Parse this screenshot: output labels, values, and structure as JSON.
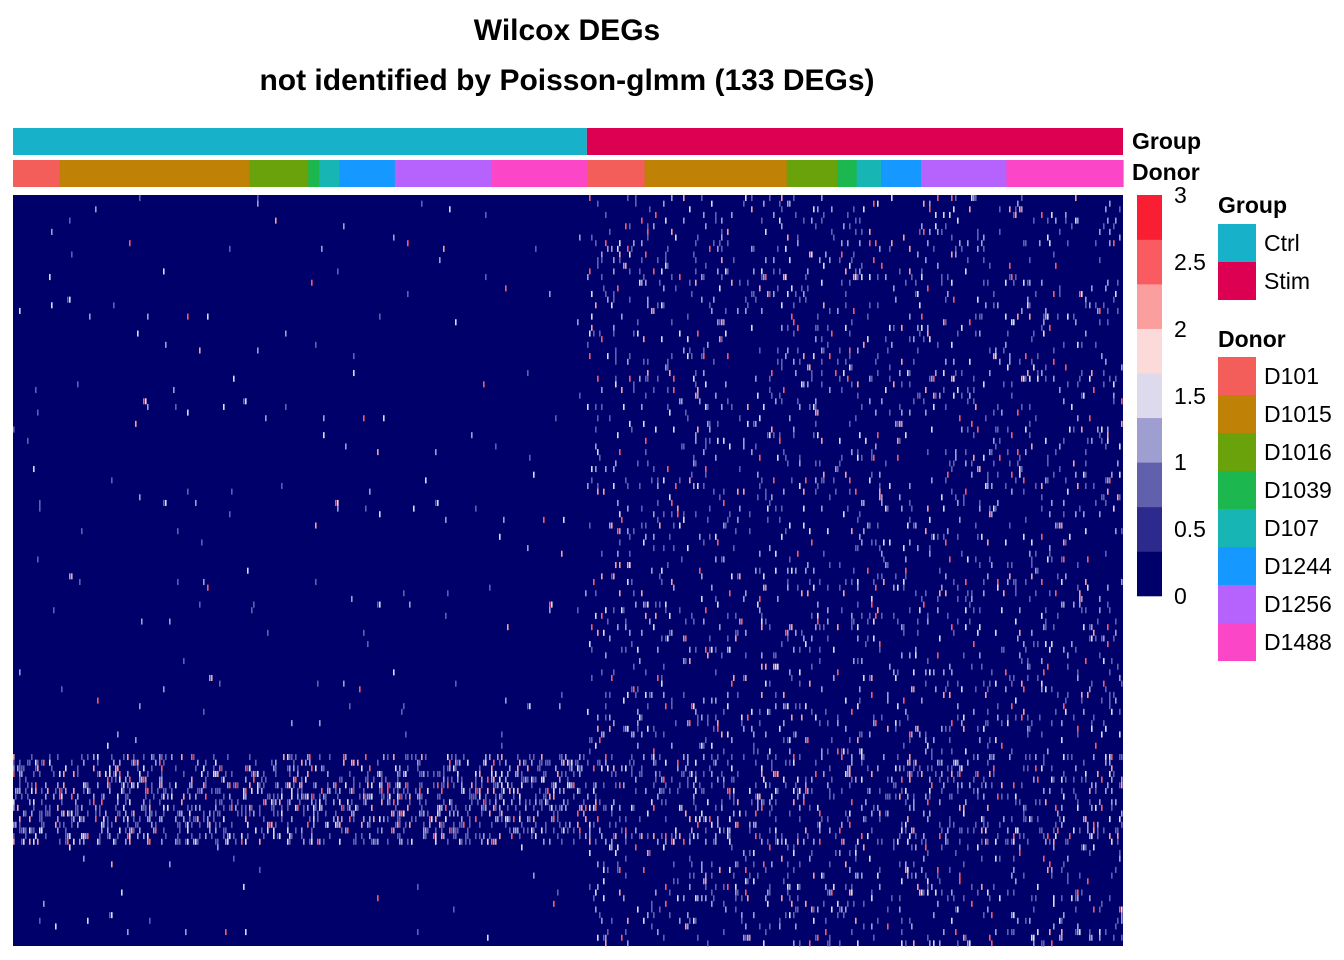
{
  "chart_data": {
    "type": "heatmap",
    "title_lines": [
      "Wilcox DEGs",
      "not identified by Poisson-glmm (133 DEGs)"
    ],
    "n_genes": 133,
    "annotation_rows": [
      "Group",
      "Donor"
    ],
    "groups": [
      {
        "name": "Ctrl",
        "color": "#17B1C9"
      },
      {
        "name": "Stim",
        "color": "#DD0052"
      }
    ],
    "donors": [
      {
        "name": "D101",
        "color": "#F35E5A"
      },
      {
        "name": "D1015",
        "color": "#C08107"
      },
      {
        "name": "D1016",
        "color": "#6AA20C"
      },
      {
        "name": "D1039",
        "color": "#1CB74F"
      },
      {
        "name": "D107",
        "color": "#18B5B5"
      },
      {
        "name": "D1244",
        "color": "#1598FF"
      },
      {
        "name": "D1256",
        "color": "#B563FC"
      },
      {
        "name": "D1488",
        "color": "#FB46C8"
      }
    ],
    "column_blocks": [
      {
        "group": "Ctrl",
        "donor": "D101",
        "fraction": 0.042
      },
      {
        "group": "Ctrl",
        "donor": "D1015",
        "fraction": 0.171
      },
      {
        "group": "Ctrl",
        "donor": "D1016",
        "fraction": 0.053
      },
      {
        "group": "Ctrl",
        "donor": "D1039",
        "fraction": 0.01
      },
      {
        "group": "Ctrl",
        "donor": "D107",
        "fraction": 0.018
      },
      {
        "group": "Ctrl",
        "donor": "D1244",
        "fraction": 0.05
      },
      {
        "group": "Ctrl",
        "donor": "D1256",
        "fraction": 0.087
      },
      {
        "group": "Ctrl",
        "donor": "D1488",
        "fraction": 0.086
      },
      {
        "group": "Stim",
        "donor": "D101",
        "fraction": 0.052
      },
      {
        "group": "Stim",
        "donor": "D1015",
        "fraction": 0.128
      },
      {
        "group": "Stim",
        "donor": "D1016",
        "fraction": 0.046
      },
      {
        "group": "Stim",
        "donor": "D1039",
        "fraction": 0.017
      },
      {
        "group": "Stim",
        "donor": "D107",
        "fraction": 0.022
      },
      {
        "group": "Stim",
        "donor": "D1244",
        "fraction": 0.036
      },
      {
        "group": "Stim",
        "donor": "D1256",
        "fraction": 0.077
      },
      {
        "group": "Stim",
        "donor": "D1488",
        "fraction": 0.105
      }
    ],
    "color_scale": {
      "min": 0,
      "max": 3,
      "ticks": [
        "3",
        "2.5",
        "2",
        "1.5",
        "1",
        "0.5",
        "0"
      ],
      "colors": [
        "#00006B",
        "#2C2A8C",
        "#6060AD",
        "#9E9ED0",
        "#DCDAEC",
        "#FDDADA",
        "#FB9E9E",
        "#FA5B60",
        "#FA1E32"
      ]
    },
    "pattern": {
      "background_value": 0,
      "ctrl_row_density": 0.006,
      "stim_row_density": 0.07,
      "high_expression_rows": [
        0.74,
        0.86
      ],
      "high_expression_density": 0.35
    },
    "legend_titles": {
      "group": "Group",
      "donor": "Donor"
    }
  }
}
